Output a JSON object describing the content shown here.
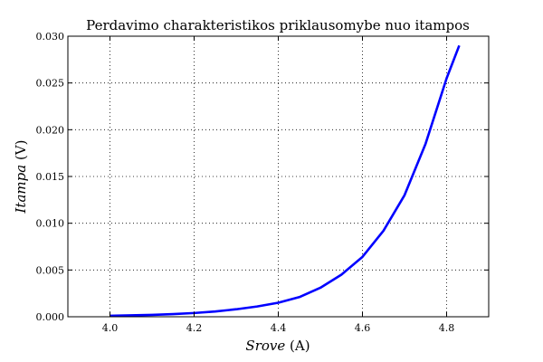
{
  "chart_data": {
    "type": "line",
    "title": "Perdavimo charakteristikos priklausomybe nuo itampos",
    "xlabel_italic": "Srove",
    "xlabel_rest": " (A)",
    "ylabel_italic": "Itampa",
    "ylabel_rest": " (V)",
    "xlim": [
      3.9,
      4.9
    ],
    "ylim": [
      0,
      0.03
    ],
    "xticks": [
      4.0,
      4.2,
      4.4,
      4.6,
      4.8
    ],
    "xtick_labels": [
      "4.0",
      "4.2",
      "4.4",
      "4.6",
      "4.8"
    ],
    "yticks": [
      0,
      0.005,
      0.01,
      0.015,
      0.02,
      0.025,
      0.03
    ],
    "ytick_labels": [
      "0.000",
      "0.005",
      "0.010",
      "0.015",
      "0.020",
      "0.025",
      "0.030"
    ],
    "grid": true,
    "color": "#0000ff",
    "series": [
      {
        "x": [
          4.0,
          4.05,
          4.1,
          4.15,
          4.2,
          4.25,
          4.3,
          4.35,
          4.4,
          4.45,
          4.5,
          4.55,
          4.6,
          4.65,
          4.7,
          4.75,
          4.8,
          4.83
        ],
        "y": [
          0.0001,
          0.00015,
          0.0002,
          0.00028,
          0.0004,
          0.00056,
          0.0008,
          0.0011,
          0.0015,
          0.0021,
          0.0031,
          0.0045,
          0.0064,
          0.0092,
          0.013,
          0.0185,
          0.0255,
          0.029
        ]
      }
    ]
  }
}
